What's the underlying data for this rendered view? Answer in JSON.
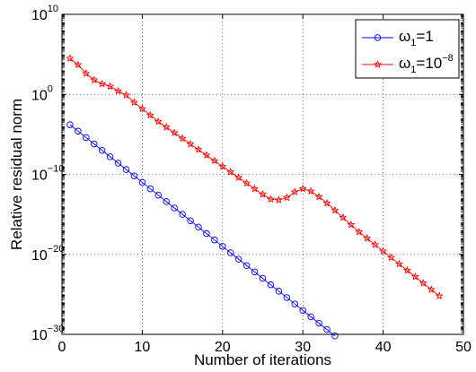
{
  "chart_data": {
    "type": "line",
    "xlabel": "Number of iterations",
    "ylabel": "Relative residual norm",
    "xlim": [
      0,
      50
    ],
    "ylim_log10": [
      -30,
      10
    ],
    "y_scale": "log",
    "grid": true,
    "legend_position": "top-right",
    "x_ticks": [
      "0",
      "10",
      "20",
      "30",
      "40",
      "50"
    ],
    "y_ticks": [
      {
        "base": "10",
        "exp": "10"
      },
      {
        "base": "10",
        "exp": "0"
      },
      {
        "base": "10",
        "exp": "−10"
      },
      {
        "base": "10",
        "exp": "−20"
      },
      {
        "base": "10",
        "exp": "−30"
      }
    ],
    "series": [
      {
        "legend": {
          "symbol": "ω",
          "sub": "1",
          "rest": "=1",
          "sup": ""
        },
        "color": "#0000ff",
        "marker": "circle",
        "x": [
          1,
          2,
          3,
          4,
          5,
          6,
          7,
          8,
          9,
          10,
          11,
          12,
          13,
          14,
          15,
          16,
          17,
          18,
          19,
          20,
          21,
          22,
          23,
          24,
          25,
          26,
          27,
          28,
          29,
          30,
          31,
          32,
          33,
          34
        ],
        "log10_y": [
          -3.8,
          -4.6,
          -5.4,
          -6.2,
          -7.0,
          -7.8,
          -8.6,
          -9.4,
          -10.2,
          -11.0,
          -11.8,
          -12.6,
          -13.4,
          -14.2,
          -15.0,
          -15.8,
          -16.6,
          -17.4,
          -18.2,
          -19.0,
          -19.8,
          -20.6,
          -21.4,
          -22.2,
          -23.0,
          -23.8,
          -24.6,
          -25.4,
          -26.2,
          -27.0,
          -27.8,
          -28.6,
          -29.4,
          -30.2
        ]
      },
      {
        "legend": {
          "symbol": "ω",
          "sub": "1",
          "rest": "=10",
          "sup": "−8"
        },
        "color": "#ff0000",
        "marker": "star",
        "x": [
          1,
          2,
          3,
          4,
          5,
          6,
          7,
          8,
          9,
          10,
          11,
          12,
          13,
          14,
          15,
          16,
          17,
          18,
          19,
          20,
          21,
          22,
          23,
          24,
          25,
          26,
          27,
          28,
          29,
          30,
          31,
          32,
          33,
          34,
          35,
          36,
          37,
          38,
          39,
          40,
          41,
          42,
          43,
          44,
          45,
          46,
          47
        ],
        "log10_y": [
          4.5,
          3.7,
          2.6,
          1.8,
          1.3,
          1.0,
          0.4,
          -0.1,
          -1.0,
          -1.8,
          -2.6,
          -3.4,
          -4.1,
          -4.8,
          -5.5,
          -6.2,
          -6.9,
          -7.6,
          -8.3,
          -9.0,
          -9.7,
          -10.4,
          -11.1,
          -11.8,
          -12.5,
          -13.1,
          -13.2,
          -12.9,
          -12.2,
          -11.8,
          -12.1,
          -12.8,
          -13.6,
          -14.5,
          -15.4,
          -16.3,
          -17.2,
          -18.0,
          -18.8,
          -19.6,
          -20.4,
          -21.2,
          -22.0,
          -22.8,
          -23.6,
          -24.4,
          -25.2
        ]
      }
    ]
  }
}
